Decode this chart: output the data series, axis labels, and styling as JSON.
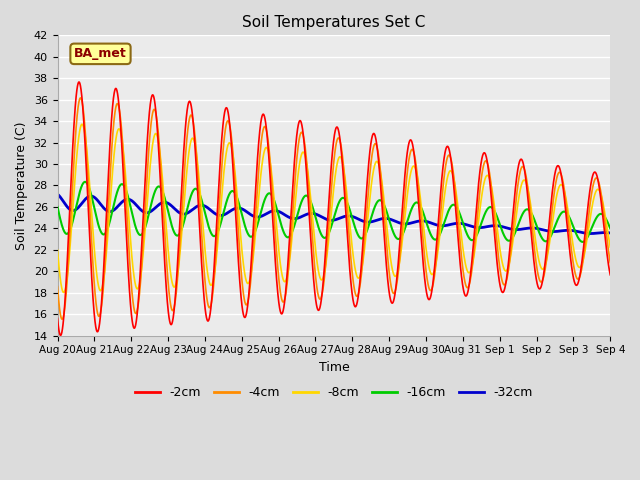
{
  "title": "Soil Temperatures Set C",
  "xlabel": "Time",
  "ylabel": "Soil Temperature (C)",
  "ylim": [
    14,
    42
  ],
  "yticks": [
    14,
    16,
    18,
    20,
    22,
    24,
    26,
    28,
    30,
    32,
    34,
    36,
    38,
    40,
    42
  ],
  "annotation_text": "BA_met",
  "annotation_color": "#8B0000",
  "annotation_bg": "#FFFF99",
  "annotation_border": "#8B6914",
  "series_colors": {
    "-2cm": "#FF0000",
    "-4cm": "#FF8C00",
    "-8cm": "#FFD700",
    "-16cm": "#00CC00",
    "-32cm": "#0000CD"
  },
  "series_linewidths": {
    "-2cm": 1.2,
    "-4cm": 1.2,
    "-8cm": 1.2,
    "-16cm": 1.5,
    "-32cm": 2.0
  },
  "x_tick_labels": [
    "Aug 20",
    "Aug 21",
    "Aug 22",
    "Aug 23",
    "Aug 24",
    "Aug 25",
    "Aug 26",
    "Aug 27",
    "Aug 28",
    "Aug 29",
    "Aug 30",
    "Aug 31",
    "Sep 1",
    "Sep 2",
    "Sep 3",
    "Sep 4"
  ],
  "background_color": "#DCDCDC",
  "plot_bg_color": "#EBEBEB",
  "grid_color": "#FFFFFF",
  "figsize": [
    6.4,
    4.8
  ],
  "dpi": 100
}
